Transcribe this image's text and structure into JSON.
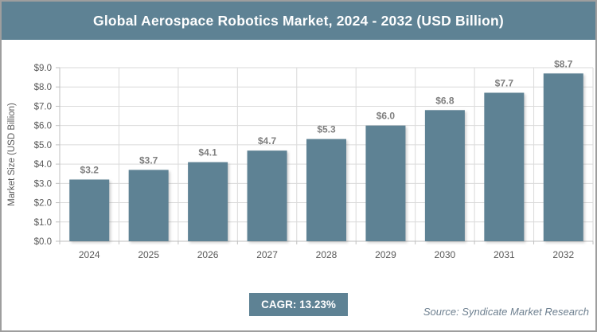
{
  "header": {
    "title": "Global Aerospace Robotics Market, 2024 - 2032 (USD Billion)"
  },
  "chart_data": {
    "type": "bar",
    "title": "Global Aerospace Robotics Market, 2024 - 2032 (USD Billion)",
    "categories": [
      "2024",
      "2025",
      "2026",
      "2027",
      "2028",
      "2029",
      "2030",
      "2031",
      "2032"
    ],
    "values": [
      3.2,
      3.7,
      4.1,
      4.7,
      5.3,
      6.0,
      6.8,
      7.7,
      8.7
    ],
    "value_labels": [
      "$3.2",
      "$3.7",
      "$4.1",
      "$4.7",
      "$5.3",
      "$6.0",
      "$6.8",
      "$7.7",
      "$8.7"
    ],
    "xlabel": "",
    "ylabel": "Market Size (USD Billion)",
    "ylim": [
      0,
      9
    ],
    "ytick_step": 1.0,
    "ytick_labels": [
      "$0.0",
      "$1.0",
      "$2.0",
      "$3.0",
      "$4.0",
      "$5.0",
      "$6.0",
      "$7.0",
      "$8.0",
      "$9.0"
    ],
    "grid": "horizontal and vertical light gray gridlines",
    "legend": "none"
  },
  "footer": {
    "cagr_label": "CAGR: 13.23%",
    "source": "Source: Syndicate Market Research"
  },
  "colors": {
    "bar_fill": "#5e8294",
    "header_bg": "#5e8294",
    "badge_bg": "#5e8294",
    "gridline": "#dadada",
    "axis_line": "#bfbfbf",
    "tick_label": "#595959",
    "data_label": "#7f7f7f",
    "source_text": "#6e8090",
    "outer_border": "#9e9e9e",
    "title_text": "#ffffff"
  }
}
